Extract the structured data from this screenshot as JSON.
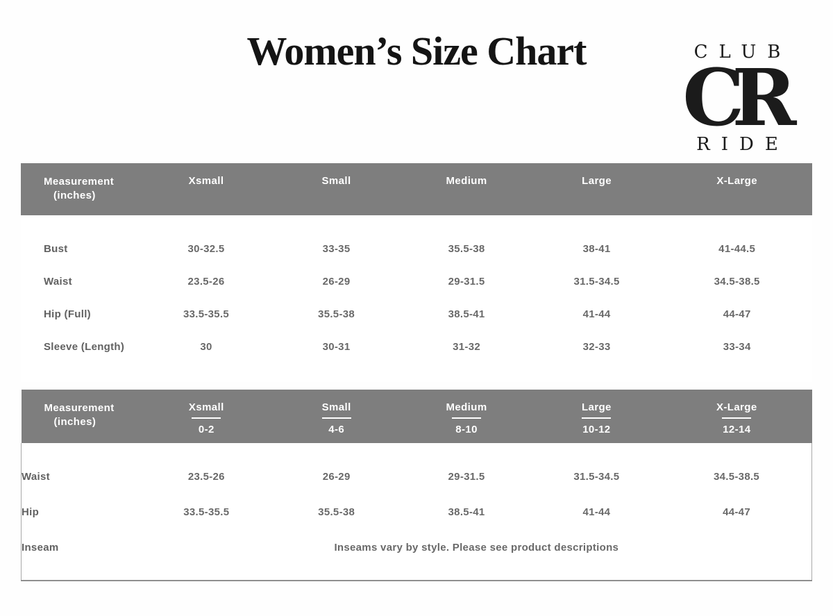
{
  "page": {
    "title": "Women’s Size Chart"
  },
  "logo": {
    "top": "CLUB",
    "monogram": "CR",
    "bottom": "RIDE"
  },
  "colors": {
    "header_bg": "#7e7e7e",
    "header_text": "#ffffff",
    "body_text": "#696969",
    "body_bg": "#ffffff",
    "frame_border": "#a8a8a8",
    "title_text": "#141414"
  },
  "table_tops": {
    "corner": {
      "line1": "Measurement",
      "line2": "(inches)"
    },
    "columns": [
      "Xsmall",
      "Small",
      "Medium",
      "Large",
      "X-Large"
    ],
    "rows": [
      {
        "label": "Bust",
        "values": [
          "30-32.5",
          "33-35",
          "35.5-38",
          "38-41",
          "41-44.5"
        ]
      },
      {
        "label": "Waist",
        "values": [
          "23.5-26",
          "26-29",
          "29-31.5",
          "31.5-34.5",
          "34.5-38.5"
        ]
      },
      {
        "label": "Hip (Full)",
        "values": [
          "33.5-35.5",
          "35.5-38",
          "38.5-41",
          "41-44",
          "44-47"
        ]
      },
      {
        "label": "Sleeve (Length)",
        "values": [
          "30",
          "30-31",
          "31-32",
          "32-33",
          "33-34"
        ]
      }
    ]
  },
  "table_bottoms": {
    "corner": {
      "line1": "Measurement",
      "line2": "(inches)"
    },
    "columns": [
      {
        "name": "Xsmall",
        "range": "0-2"
      },
      {
        "name": "Small",
        "range": "4-6"
      },
      {
        "name": "Medium",
        "range": "8-10"
      },
      {
        "name": "Large",
        "range": "10-12"
      },
      {
        "name": "X-Large",
        "range": "12-14"
      }
    ],
    "rows": [
      {
        "label": "Waist",
        "values": [
          "23.5-26",
          "26-29",
          "29-31.5",
          "31.5-34.5",
          "34.5-38.5"
        ]
      },
      {
        "label": "Hip",
        "values": [
          "33.5-35.5",
          "35.5-38",
          "38.5-41",
          "41-44",
          "44-47"
        ]
      }
    ],
    "inseam": {
      "label": "Inseam",
      "note": "Inseams vary by style. Please see product descriptions"
    }
  }
}
